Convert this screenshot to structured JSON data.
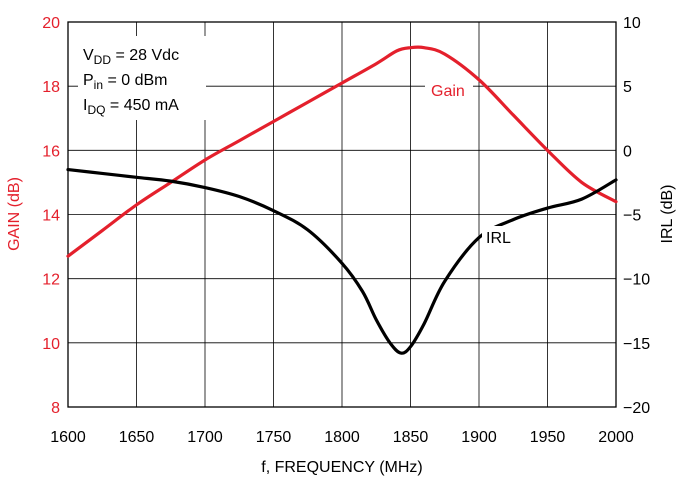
{
  "chart_data": {
    "type": "line",
    "xlabel": "f, FREQUENCY (MHz)",
    "ylabel_left": "GAIN (dB)",
    "ylabel_right": "IRL (dB)",
    "xlim": [
      1600,
      2000
    ],
    "ylim_left": [
      8,
      20
    ],
    "ylim_right": [
      -20,
      10
    ],
    "x_ticks": [
      "1600",
      "1650",
      "1700",
      "1750",
      "1800",
      "1850",
      "1900",
      "1950",
      "2000"
    ],
    "y_left_ticks": [
      "8",
      "10",
      "12",
      "14",
      "16",
      "18",
      "20"
    ],
    "y_right_ticks": [
      "−20",
      "−15",
      "−10",
      "−5",
      "0",
      "5",
      "10"
    ],
    "grid": true,
    "annotation": {
      "vdd": {
        "main": "V",
        "sub": "DD",
        "rest": " = 28 Vdc"
      },
      "pin": {
        "main": "P",
        "sub": "in",
        "rest": " = 0 dBm"
      },
      "idq": {
        "main": "I",
        "sub": "DQ",
        "rest": " = 450 mA"
      }
    },
    "series": [
      {
        "name": "Gain",
        "axis": "left",
        "color": "#e4202c",
        "x": [
          1600,
          1625,
          1650,
          1675,
          1700,
          1725,
          1750,
          1775,
          1800,
          1825,
          1840,
          1850,
          1860,
          1875,
          1900,
          1925,
          1950,
          1975,
          2000
        ],
        "y": [
          12.7,
          13.5,
          14.3,
          15.0,
          15.7,
          16.3,
          16.9,
          17.5,
          18.1,
          18.7,
          19.1,
          19.2,
          19.2,
          19.0,
          18.2,
          17.1,
          16.0,
          15.0,
          14.4
        ]
      },
      {
        "name": "IRL",
        "axis": "right",
        "color": "#000000",
        "x": [
          1600,
          1625,
          1650,
          1675,
          1700,
          1725,
          1750,
          1775,
          1800,
          1815,
          1825,
          1835,
          1843,
          1850,
          1860,
          1875,
          1900,
          1925,
          1950,
          1975,
          2000
        ],
        "y": [
          -1.5,
          -1.8,
          -2.1,
          -2.4,
          -2.9,
          -3.6,
          -4.7,
          -6.2,
          -8.8,
          -11.0,
          -13.2,
          -15.0,
          -15.8,
          -15.3,
          -13.5,
          -10.2,
          -6.8,
          -5.4,
          -4.5,
          -3.8,
          -2.3
        ]
      }
    ]
  }
}
